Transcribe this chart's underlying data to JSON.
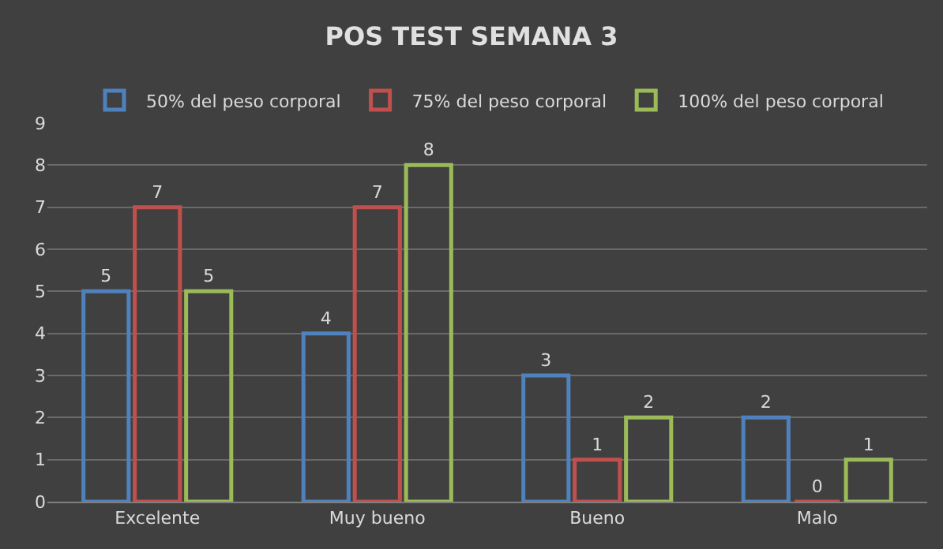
{
  "chart_data": {
    "type": "bar",
    "title": "POS TEST SEMANA 3",
    "categories": [
      "Excelente",
      "Muy bueno",
      "Bueno",
      "Malo"
    ],
    "series": [
      {
        "name": "50% del peso corporal",
        "color": "#4f81bd",
        "values": [
          5,
          4,
          3,
          2
        ]
      },
      {
        "name": "75% del peso corporal",
        "color": "#c0504d",
        "values": [
          7,
          7,
          1,
          0
        ]
      },
      {
        "name": "100% del peso corporal",
        "color": "#9bbb59",
        "values": [
          5,
          8,
          2,
          1
        ]
      }
    ],
    "ylim": [
      0,
      9
    ],
    "yticks": [
      0,
      1,
      2,
      3,
      4,
      5,
      6,
      7,
      8,
      9
    ],
    "grid": "y",
    "legend": "top",
    "data_labels": true
  }
}
